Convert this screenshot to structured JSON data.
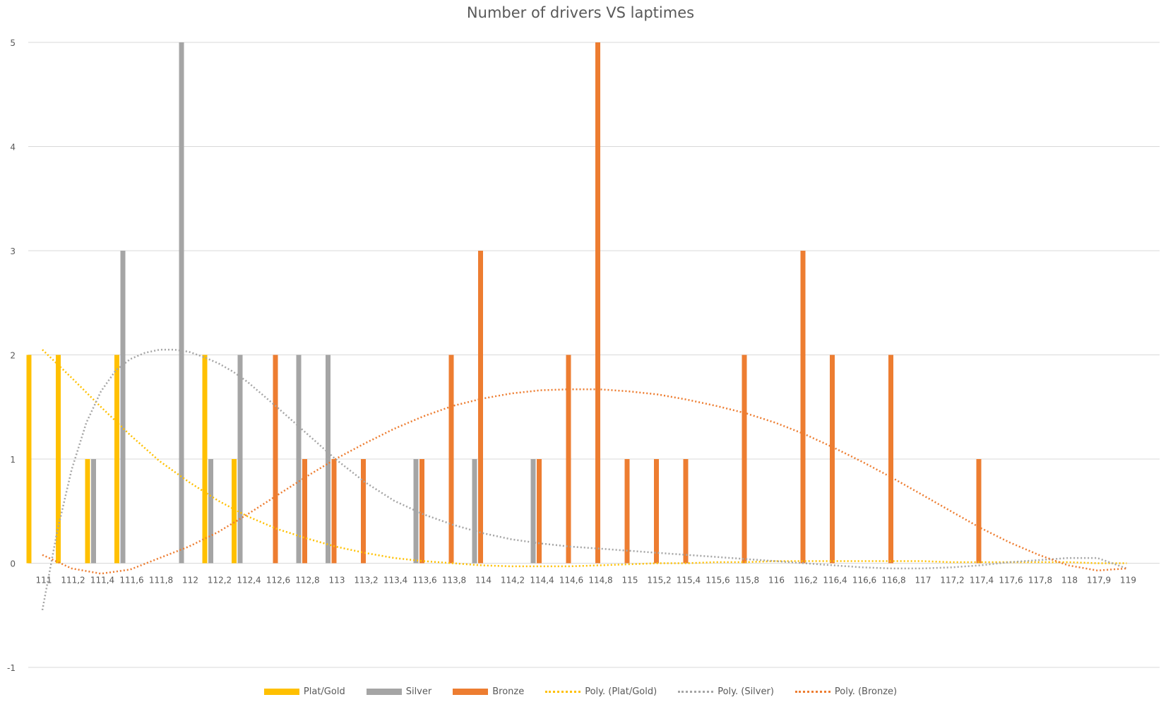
{
  "chart_data": {
    "type": "bar",
    "title": "Number of drivers VS laptimes",
    "xlabel": "",
    "ylabel": "",
    "ylim": [
      -1,
      5
    ],
    "yticks": [
      "-1",
      "0",
      "1",
      "2",
      "3",
      "4",
      "5"
    ],
    "grid": true,
    "legend_position": "bottom",
    "categories": [
      "111",
      "111,2",
      "111,4",
      "111,6",
      "111,8",
      "112",
      "112,2",
      "112,4",
      "112,6",
      "112,8",
      "113",
      "113,2",
      "113,4",
      "113,6",
      "113,8",
      "114",
      "114,2",
      "114,4",
      "114,6",
      "114,8",
      "115",
      "115,2",
      "115,4",
      "115,6",
      "115,8",
      "116",
      "116,2",
      "116,4",
      "116,6",
      "116,8",
      "117",
      "117,2",
      "117,4",
      "117,6",
      "117,8",
      "118",
      "117,9",
      "119"
    ],
    "series": [
      {
        "name": "Plat/Gold",
        "color": "#FFC000",
        "values": [
          2,
          2,
          1,
          2,
          0,
          0,
          2,
          1,
          0,
          0,
          0,
          0,
          0,
          0,
          0,
          0,
          0,
          0,
          0,
          0,
          0,
          0,
          0,
          0,
          0,
          0,
          0,
          0,
          0,
          0,
          0,
          0,
          0,
          0,
          0,
          0,
          0,
          0
        ]
      },
      {
        "name": "Silver",
        "color": "#A5A5A5",
        "values": [
          0,
          0,
          1,
          3,
          0,
          5,
          1,
          2,
          0,
          2,
          2,
          0,
          0,
          1,
          0,
          1,
          0,
          1,
          0,
          0,
          0,
          0,
          0,
          0,
          0,
          0,
          0,
          0,
          0,
          0,
          0,
          0,
          0,
          0,
          0,
          0,
          0,
          0
        ]
      },
      {
        "name": "Bronze",
        "color": "#ED7D31",
        "values": [
          0,
          0,
          0,
          0,
          0,
          0,
          0,
          0,
          2,
          1,
          1,
          1,
          0,
          1,
          2,
          3,
          0,
          1,
          2,
          5,
          1,
          1,
          1,
          0,
          2,
          0,
          3,
          2,
          0,
          2,
          0,
          0,
          1,
          0,
          0,
          0,
          0,
          0
        ]
      }
    ],
    "trendlines": [
      {
        "name": "Poly. (Plat/Gold)",
        "color": "#FFC000",
        "x": [
          0,
          1,
          2,
          3,
          4,
          5,
          6,
          7,
          8,
          9,
          10,
          11,
          12,
          13,
          14,
          15,
          16,
          17,
          18,
          19,
          20,
          21,
          22,
          23,
          24,
          25,
          26,
          27,
          28,
          29,
          30,
          31,
          32,
          33,
          34,
          35,
          36,
          37
        ],
        "values": [
          2.05,
          1.78,
          1.5,
          1.23,
          0.98,
          0.78,
          0.6,
          0.45,
          0.33,
          0.24,
          0.16,
          0.1,
          0.05,
          0.02,
          0.0,
          -0.02,
          -0.03,
          -0.03,
          -0.03,
          -0.02,
          -0.01,
          0.0,
          0.0,
          0.01,
          0.01,
          0.02,
          0.02,
          0.02,
          0.02,
          0.02,
          0.02,
          0.01,
          0.01,
          0.01,
          0.01,
          0.01,
          0.0,
          0.0
        ]
      },
      {
        "name": "Poly. (Silver)",
        "color": "#A5A5A5",
        "x": [
          0,
          0.5,
          1,
          1.5,
          2,
          2.5,
          3,
          3.5,
          4,
          4.5,
          5,
          5.5,
          6,
          6.5,
          7,
          8,
          9,
          10,
          11,
          12,
          13,
          14,
          15,
          16,
          17,
          18,
          19,
          20,
          21,
          22,
          23,
          24,
          25,
          26,
          27,
          28,
          29,
          30,
          31,
          32,
          33,
          34,
          35,
          36,
          37
        ],
        "values": [
          -0.45,
          0.3,
          0.9,
          1.35,
          1.65,
          1.85,
          1.96,
          2.02,
          2.05,
          2.05,
          2.03,
          1.98,
          1.92,
          1.84,
          1.74,
          1.5,
          1.25,
          1.0,
          0.78,
          0.6,
          0.47,
          0.37,
          0.29,
          0.23,
          0.19,
          0.16,
          0.14,
          0.12,
          0.1,
          0.08,
          0.06,
          0.04,
          0.02,
          0.0,
          -0.02,
          -0.04,
          -0.05,
          -0.05,
          -0.04,
          -0.02,
          0.01,
          0.03,
          0.05,
          0.05,
          -0.05
        ]
      },
      {
        "name": "Poly. (Bronze)",
        "color": "#ED7D31",
        "x": [
          0,
          1,
          2,
          3,
          4,
          5,
          6,
          7,
          8,
          9,
          10,
          11,
          12,
          13,
          14,
          15,
          16,
          17,
          18,
          19,
          20,
          21,
          22,
          23,
          24,
          25,
          26,
          27,
          28,
          29,
          30,
          31,
          32,
          33,
          34,
          35,
          36,
          37
        ],
        "values": [
          0.08,
          -0.05,
          -0.1,
          -0.06,
          0.05,
          0.16,
          0.3,
          0.47,
          0.65,
          0.83,
          1.0,
          1.15,
          1.29,
          1.41,
          1.51,
          1.58,
          1.63,
          1.66,
          1.67,
          1.67,
          1.65,
          1.62,
          1.57,
          1.51,
          1.44,
          1.35,
          1.24,
          1.11,
          0.97,
          0.82,
          0.66,
          0.5,
          0.34,
          0.2,
          0.08,
          -0.02,
          -0.07,
          -0.05
        ]
      }
    ]
  }
}
